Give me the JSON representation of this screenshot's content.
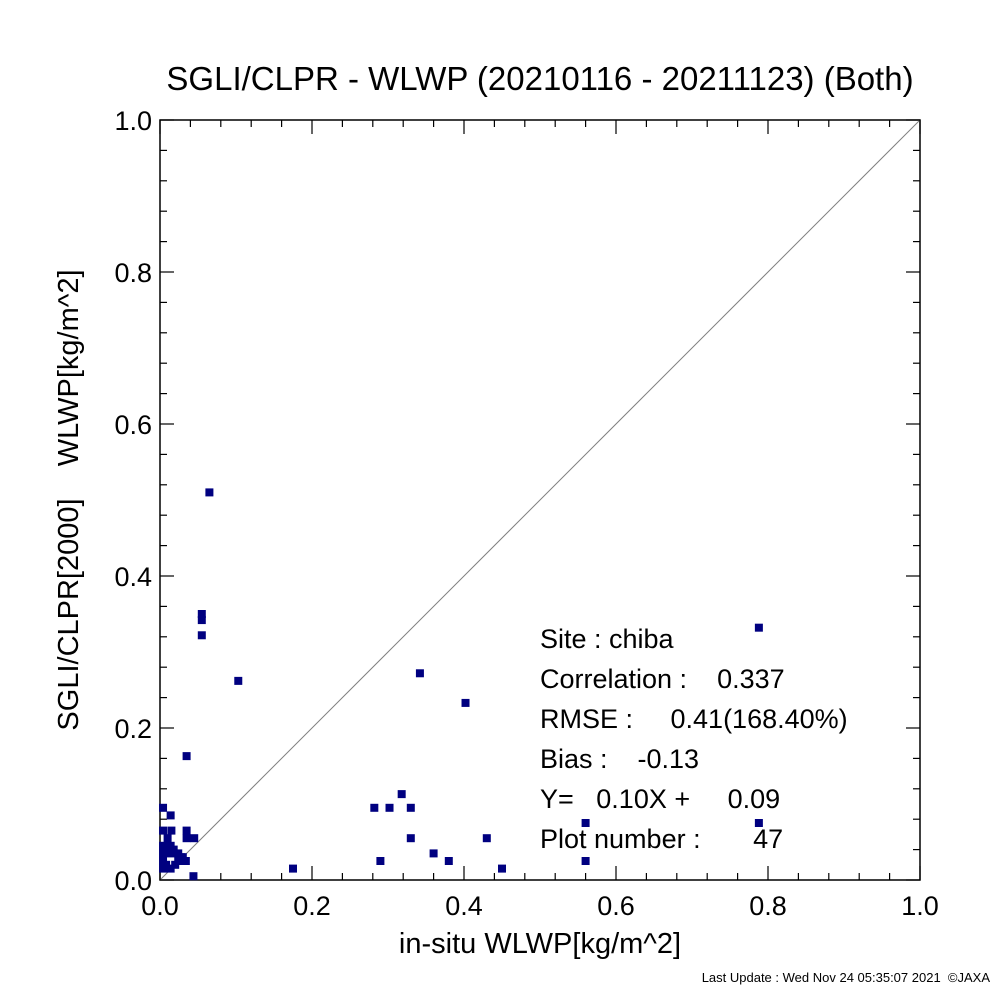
{
  "chart_data": {
    "type": "scatter",
    "title": "SGLI/CLPR - WLWP (20210116 - 20211123) (Both)",
    "xlabel": "in-situ WLWP[kg/m^2]",
    "ylabel": "SGLI/CLPR[2000]    WLWP[kg/m^2]",
    "xlim": [
      0,
      1
    ],
    "ylim": [
      0,
      1
    ],
    "x_ticks": [
      "0.0",
      "0.2",
      "0.4",
      "0.6",
      "0.8",
      "1.0"
    ],
    "y_ticks": [
      "0.0",
      "0.2",
      "0.4",
      "0.6",
      "0.8",
      "1.0"
    ],
    "grid": false,
    "one_to_one_line": true,
    "marker_color": "#000080",
    "line_color": "#808080",
    "series": [
      {
        "points": [
          {
            "x": 0.065,
            "y": 0.51
          },
          {
            "x": 0.055,
            "y": 0.35
          },
          {
            "x": 0.055,
            "y": 0.342
          },
          {
            "x": 0.055,
            "y": 0.322
          },
          {
            "x": 0.103,
            "y": 0.262
          },
          {
            "x": 0.035,
            "y": 0.163
          },
          {
            "x": 0.342,
            "y": 0.272
          },
          {
            "x": 0.402,
            "y": 0.233
          },
          {
            "x": 0.788,
            "y": 0.332
          },
          {
            "x": 0.318,
            "y": 0.113
          },
          {
            "x": 0.282,
            "y": 0.095
          },
          {
            "x": 0.302,
            "y": 0.095
          },
          {
            "x": 0.33,
            "y": 0.095
          },
          {
            "x": 0.33,
            "y": 0.055
          },
          {
            "x": 0.43,
            "y": 0.055
          },
          {
            "x": 0.36,
            "y": 0.035
          },
          {
            "x": 0.38,
            "y": 0.025
          },
          {
            "x": 0.29,
            "y": 0.025
          },
          {
            "x": 0.175,
            "y": 0.015
          },
          {
            "x": 0.45,
            "y": 0.015
          },
          {
            "x": 0.56,
            "y": 0.075
          },
          {
            "x": 0.56,
            "y": 0.025
          },
          {
            "x": 0.788,
            "y": 0.075
          },
          {
            "x": 0.004,
            "y": 0.095
          },
          {
            "x": 0.014,
            "y": 0.085
          },
          {
            "x": 0.004,
            "y": 0.065
          },
          {
            "x": 0.015,
            "y": 0.065
          },
          {
            "x": 0.035,
            "y": 0.065
          },
          {
            "x": 0.035,
            "y": 0.055
          },
          {
            "x": 0.045,
            "y": 0.055
          },
          {
            "x": 0.004,
            "y": 0.045
          },
          {
            "x": 0.014,
            "y": 0.045
          },
          {
            "x": 0.004,
            "y": 0.035
          },
          {
            "x": 0.014,
            "y": 0.035
          },
          {
            "x": 0.024,
            "y": 0.035
          },
          {
            "x": 0.03,
            "y": 0.03
          },
          {
            "x": 0.004,
            "y": 0.025
          },
          {
            "x": 0.024,
            "y": 0.025
          },
          {
            "x": 0.034,
            "y": 0.025
          },
          {
            "x": 0.004,
            "y": 0.015
          },
          {
            "x": 0.014,
            "y": 0.015
          },
          {
            "x": 0.044,
            "y": 0.005
          },
          {
            "x": 0.008,
            "y": 0.02
          },
          {
            "x": 0.018,
            "y": 0.04
          },
          {
            "x": 0.028,
            "y": 0.03
          },
          {
            "x": 0.01,
            "y": 0.055
          },
          {
            "x": 0.02,
            "y": 0.02
          }
        ]
      }
    ],
    "annotations": [
      "Site : chiba",
      "Correlation :    0.337",
      "RMSE :     0.41(168.40%)",
      "Bias :    -0.13",
      "Y=   0.10X +     0.09",
      "Plot number :       47"
    ]
  },
  "footer": {
    "last_update": "Last Update : Wed Nov 24 05:35:07 2021  ©JAXA"
  }
}
